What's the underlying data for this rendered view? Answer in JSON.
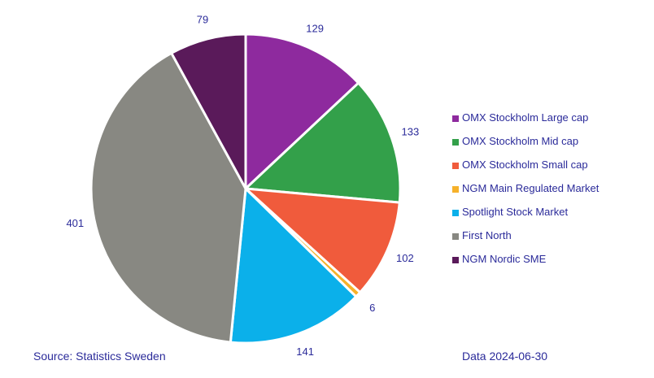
{
  "chart_data": {
    "type": "pie",
    "categories": [
      "OMX Stockholm Large cap",
      "OMX Stockholm Mid cap",
      "OMX Stockholm Small cap",
      "NGM Main Regulated Market",
      "Spotlight Stock Market",
      "First North",
      "NGM Nordic SME"
    ],
    "values": [
      129,
      133,
      102,
      6,
      141,
      401,
      79
    ],
    "labels": [
      "129",
      "133",
      "102",
      "6",
      "141",
      "401",
      "79"
    ],
    "colors": [
      "#8e2a9e",
      "#33a04a",
      "#f05b3c",
      "#f6b12a",
      "#0bb0ea",
      "#888882",
      "#5a1a5a"
    ],
    "legend_position": "right",
    "start_angle": "12 o'clock, clockwise"
  },
  "footer": {
    "source": "Source: Statistics Sweden",
    "date": "Data 2024-06-30"
  }
}
